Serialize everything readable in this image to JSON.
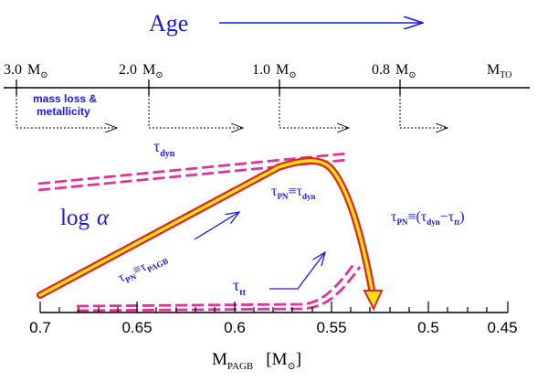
{
  "colors": {
    "text_blue": "#1a1adc",
    "axis": "#000000",
    "curve_fill": "#f2e21a",
    "curve_outline": "#e0281e",
    "dashed_band": "#e0329a"
  },
  "top_header": {
    "title": "Age",
    "mass_labels": [
      {
        "value": "3.0",
        "unit": "M",
        "unit_symbol": "⊙"
      },
      {
        "value": "2.0",
        "unit": "M",
        "unit_symbol": "⊙"
      },
      {
        "value": "1.0",
        "unit": "M",
        "unit_symbol": "⊙"
      },
      {
        "value": "0.8",
        "unit": "M",
        "unit_symbol": "⊙"
      }
    ],
    "turnoff_label": {
      "main": "M",
      "sub": "TO"
    },
    "mass_loss_note": [
      "mass loss &",
      "metallicity"
    ]
  },
  "plot": {
    "ylabel": {
      "prefix": "log",
      "symbol": "α"
    },
    "xlabel": {
      "main": "M",
      "sub": "PAGB",
      "unit_open": "[M",
      "unit_symbol": "⊙",
      "unit_close": "]"
    },
    "xticks": [
      "0.7",
      "0.65",
      "0.6",
      "0.55",
      "0.5",
      "0.45"
    ],
    "labels": {
      "tau_dyn": {
        "symbol": "τ",
        "sub": "dyn"
      },
      "tau_tt": {
        "symbol": "τ",
        "sub": "tt"
      },
      "eq_pagb": {
        "lhs": "τ",
        "lhs_sub": "PN",
        "rel": "≡",
        "rhs": "τ",
        "rhs_sub": "PAGB"
      },
      "eq_dyn": {
        "lhs": "τ",
        "lhs_sub": "PN",
        "rel": "≡",
        "rhs": "τ",
        "rhs_sub": "dyn"
      },
      "eq_diff": {
        "lhs": "τ",
        "lhs_sub": "PN",
        "rel": "≡(",
        "a": "τ",
        "a_sub": "dyn",
        "op": "−",
        "b": "τ",
        "b_sub": "tt",
        "close": ")"
      }
    }
  }
}
